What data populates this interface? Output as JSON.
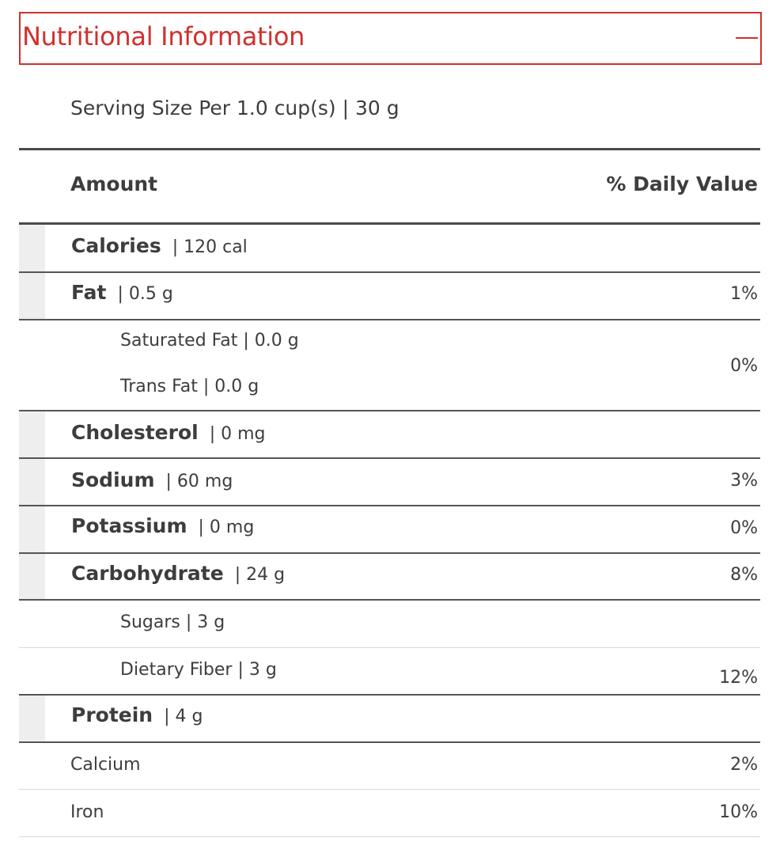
{
  "panel": {
    "title": "Nutritional Information",
    "toggle_icon": "minus-icon",
    "accent_color": "#d1302d"
  },
  "serving": "Serving Size Per 1.0 cup(s) | 30 g",
  "headers": {
    "amount": "Amount",
    "daily_value": "% Daily Value"
  },
  "nutrients": {
    "calories": {
      "name": "Calories",
      "amount": "| 120 cal",
      "dv": ""
    },
    "fat": {
      "name": "Fat",
      "amount": "| 0.5 g",
      "dv": "1%"
    },
    "saturated_fat": "Saturated Fat | 0.0 g",
    "trans_fat": "Trans Fat | 0.0 g",
    "fat_sub_dv": "0%",
    "cholesterol": {
      "name": "Cholesterol",
      "amount": "| 0 mg",
      "dv": ""
    },
    "sodium": {
      "name": "Sodium",
      "amount": "| 60 mg",
      "dv": "3%"
    },
    "potassium": {
      "name": "Potassium",
      "amount": "| 0 mg",
      "dv": "0%"
    },
    "carbohydrate": {
      "name": "Carbohydrate",
      "amount": "| 24 g",
      "dv": "8%"
    },
    "sugars": "Sugars | 3 g",
    "dietary_fiber": "Dietary Fiber | 3 g",
    "dietary_fiber_dv": "12%",
    "protein": {
      "name": "Protein",
      "amount": "| 4 g",
      "dv": ""
    }
  },
  "minerals": {
    "calcium": {
      "name": "Calcium",
      "dv": "2%"
    },
    "iron": {
      "name": "Iron",
      "dv": "10%"
    }
  }
}
